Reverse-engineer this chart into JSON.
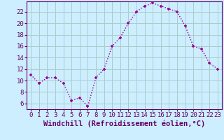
{
  "hours": [
    0,
    1,
    2,
    3,
    4,
    5,
    6,
    7,
    8,
    9,
    10,
    11,
    12,
    13,
    14,
    15,
    16,
    17,
    18,
    19,
    20,
    21,
    22,
    23
  ],
  "values": [
    11,
    9.5,
    10.5,
    10.5,
    9.5,
    6.5,
    7,
    5.5,
    10.5,
    12,
    16,
    17.5,
    20,
    22,
    23,
    23.5,
    23,
    22.5,
    22,
    19.5,
    16,
    15.5,
    13,
    12
  ],
  "line_color": "#990099",
  "marker": "+",
  "bg_color": "#cceeff",
  "grid_color": "#aacccc",
  "xlabel": "Windchill (Refroidissement éolien,°C)",
  "ylabel_ticks": [
    6,
    8,
    10,
    12,
    14,
    16,
    18,
    20,
    22
  ],
  "ylim": [
    5.0,
    23.8
  ],
  "xlim": [
    -0.5,
    23.5
  ],
  "xtick_labels": [
    "0",
    "1",
    "2",
    "3",
    "4",
    "5",
    "6",
    "7",
    "8",
    "9",
    "10",
    "11",
    "12",
    "13",
    "14",
    "15",
    "16",
    "17",
    "18",
    "19",
    "20",
    "21",
    "22",
    "23"
  ],
  "axis_fontsize": 6.5,
  "label_fontsize": 7.5
}
